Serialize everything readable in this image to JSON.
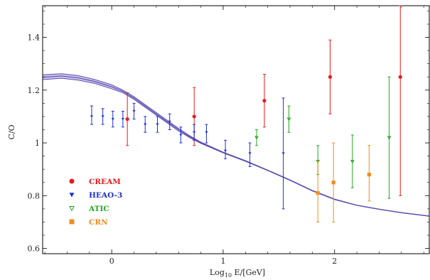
{
  "chart_data": {
    "type": "scatter",
    "xlabel": "Log",
    "xlabel_sub": "10",
    "xlabel_rest": " E/[GeV]",
    "ylabel": "C/O",
    "xlim": [
      -0.62,
      2.85
    ],
    "ylim": [
      0.58,
      1.52
    ],
    "x_ticks": [
      0,
      1,
      2
    ],
    "x_tick_labels": [
      "0",
      "1",
      "2"
    ],
    "y_ticks": [
      0.6,
      0.8,
      1.0,
      1.2,
      1.4
    ],
    "y_tick_labels": [
      "0.6",
      "0.8",
      "1",
      "1.2",
      "1.4"
    ],
    "legend_position": "lower-left",
    "series": [
      {
        "name": "CREAM",
        "marker": "circle",
        "color": "#e81c1c",
        "points": [
          {
            "x": 0.14,
            "y": 1.09,
            "lo": 0.99,
            "hi": 1.19
          },
          {
            "x": 0.74,
            "y": 1.1,
            "lo": 0.99,
            "hi": 1.21
          },
          {
            "x": 1.37,
            "y": 1.16,
            "lo": 1.06,
            "hi": 1.26
          },
          {
            "x": 1.96,
            "y": 1.25,
            "lo": 1.11,
            "hi": 1.39
          },
          {
            "x": 2.59,
            "y": 1.25,
            "lo": 0.8,
            "hi": 1.52
          }
        ]
      },
      {
        "name": "HEAO-3",
        "marker": "triangle-down-filled",
        "color": "#1f2fd0",
        "points": [
          {
            "x": -0.18,
            "y": 1.1,
            "lo": 1.07,
            "hi": 1.14
          },
          {
            "x": -0.08,
            "y": 1.1,
            "lo": 1.07,
            "hi": 1.13
          },
          {
            "x": 0.01,
            "y": 1.09,
            "lo": 1.06,
            "hi": 1.12
          },
          {
            "x": 0.1,
            "y": 1.09,
            "lo": 1.06,
            "hi": 1.12
          },
          {
            "x": 0.2,
            "y": 1.12,
            "lo": 1.09,
            "hi": 1.15
          },
          {
            "x": 0.3,
            "y": 1.07,
            "lo": 1.04,
            "hi": 1.1
          },
          {
            "x": 0.41,
            "y": 1.07,
            "lo": 1.04,
            "hi": 1.1
          },
          {
            "x": 0.52,
            "y": 1.08,
            "lo": 1.05,
            "hi": 1.11
          },
          {
            "x": 0.62,
            "y": 1.03,
            "lo": 1.0,
            "hi": 1.06
          },
          {
            "x": 0.74,
            "y": 1.04,
            "lo": 1.01,
            "hi": 1.07
          },
          {
            "x": 0.85,
            "y": 1.04,
            "lo": 1.0,
            "hi": 1.07
          },
          {
            "x": 1.02,
            "y": 0.97,
            "lo": 0.94,
            "hi": 1.01
          },
          {
            "x": 1.24,
            "y": 0.96,
            "lo": 0.91,
            "hi": 1.0
          },
          {
            "x": 1.54,
            "y": 0.96,
            "lo": 0.75,
            "hi": 1.17
          }
        ]
      },
      {
        "name": "ATIC",
        "marker": "triangle-down-open",
        "color": "#22a822",
        "points": [
          {
            "x": 1.3,
            "y": 1.02,
            "lo": 0.99,
            "hi": 1.05
          },
          {
            "x": 1.59,
            "y": 1.09,
            "lo": 1.04,
            "hi": 1.14
          },
          {
            "x": 1.85,
            "y": 0.93,
            "lo": 0.88,
            "hi": 0.99
          },
          {
            "x": 2.16,
            "y": 0.93,
            "lo": 0.83,
            "hi": 1.03
          },
          {
            "x": 2.49,
            "y": 1.02,
            "lo": 0.79,
            "hi": 1.25
          }
        ]
      },
      {
        "name": "CRN",
        "marker": "square",
        "color": "#f28c1e",
        "points": [
          {
            "x": 1.85,
            "y": 0.81,
            "lo": 0.7,
            "hi": 0.93
          },
          {
            "x": 1.99,
            "y": 0.85,
            "lo": 0.7,
            "hi": 1.0
          },
          {
            "x": 2.31,
            "y": 0.88,
            "lo": 0.78,
            "hi": 0.99
          }
        ]
      }
    ],
    "model_band": {
      "color": "#5b4db0",
      "fill": "#c9c2e8",
      "lower": [
        [
          -0.62,
          1.24
        ],
        [
          -0.45,
          1.245
        ],
        [
          -0.3,
          1.238
        ],
        [
          -0.15,
          1.225
        ],
        [
          0.0,
          1.205
        ],
        [
          0.1,
          1.19
        ],
        [
          0.2,
          1.165
        ],
        [
          0.3,
          1.135
        ],
        [
          0.4,
          1.105
        ],
        [
          0.5,
          1.075
        ],
        [
          0.6,
          1.045
        ],
        [
          0.7,
          1.02
        ],
        [
          0.8,
          0.998
        ],
        [
          1.0,
          0.962
        ],
        [
          1.2,
          0.93
        ],
        [
          1.4,
          0.895
        ],
        [
          1.6,
          0.858
        ],
        [
          1.8,
          0.818
        ],
        [
          2.0,
          0.785
        ],
        [
          2.2,
          0.763
        ],
        [
          2.4,
          0.748
        ],
        [
          2.6,
          0.735
        ],
        [
          2.85,
          0.722
        ]
      ],
      "upper": [
        [
          -0.62,
          1.258
        ],
        [
          -0.45,
          1.262
        ],
        [
          -0.3,
          1.255
        ],
        [
          -0.15,
          1.24
        ],
        [
          0.0,
          1.22
        ],
        [
          0.1,
          1.2
        ],
        [
          0.2,
          1.175
        ],
        [
          0.3,
          1.145
        ],
        [
          0.4,
          1.115
        ],
        [
          0.5,
          1.085
        ],
        [
          0.6,
          1.055
        ],
        [
          0.7,
          1.027
        ],
        [
          0.8,
          1.003
        ],
        [
          1.0,
          0.965
        ],
        [
          1.2,
          0.933
        ],
        [
          1.4,
          0.897
        ],
        [
          1.6,
          0.86
        ],
        [
          1.8,
          0.82
        ],
        [
          2.0,
          0.787
        ],
        [
          2.2,
          0.764
        ],
        [
          2.4,
          0.749
        ],
        [
          2.6,
          0.736
        ],
        [
          2.85,
          0.723
        ]
      ]
    }
  }
}
